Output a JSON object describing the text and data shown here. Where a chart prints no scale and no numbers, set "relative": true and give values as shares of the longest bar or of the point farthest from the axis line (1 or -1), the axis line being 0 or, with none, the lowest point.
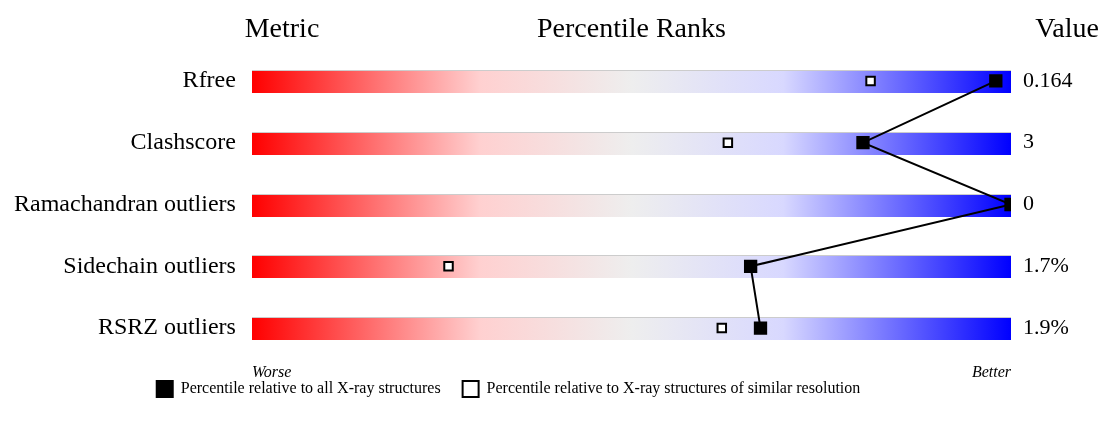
{
  "chart_data": {
    "type": "scatter",
    "orientation": "horizontal",
    "relative": true,
    "title": "Percentile Ranks",
    "ylabel": "Metric",
    "y2label": "Value",
    "categories": [
      "Rfree",
      "Clashscore",
      "Ramachandran outliers",
      "Sidechain outliers",
      "RSRZ outliers"
    ],
    "series": [
      {
        "name": "Percentile relative to all X-ray structures",
        "type": "line",
        "color": "#000000",
        "values": [
          0.98,
          0.805,
          1.0,
          0.657,
          0.67
        ],
        "line_style": "solid",
        "marker": "square"
      },
      {
        "name": "Percentile relative to X-ray structures of similar resolution",
        "color": "#000000",
        "values": [
          0.815,
          0.627,
          null,
          0.259,
          0.619
        ],
        "marker": "square"
      }
    ],
    "annotations": [
      "0.164",
      "3",
      "0",
      "1.7%",
      "1.9%",
      "Worse",
      "Better"
    ],
    "legend": "bottom"
  }
}
